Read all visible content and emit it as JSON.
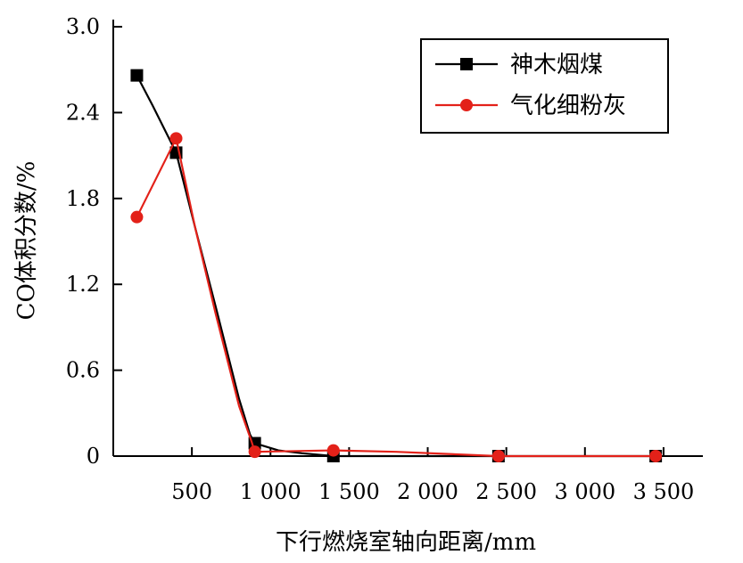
{
  "chart_data": {
    "type": "line",
    "title": "",
    "xlabel": "下行燃烧室轴向距离/mm",
    "ylabel": "CO体积分数/%",
    "xlim": [
      0,
      3750
    ],
    "ylim": [
      0,
      3.0
    ],
    "xticks": [
      500,
      1000,
      1500,
      2000,
      2500,
      3000,
      3500
    ],
    "xtick_labels": [
      "500",
      "1 000",
      "1 500",
      "2 000",
      "2 500",
      "3 000",
      "3 500"
    ],
    "yticks": [
      0,
      0.6,
      1.2,
      1.8,
      2.4,
      3.0
    ],
    "ytick_labels": [
      "0",
      "0.6",
      "1.2",
      "1.8",
      "2.4",
      "3.0"
    ],
    "grid": false,
    "legend_position": "top-right",
    "series": [
      {
        "name": "神木烟煤",
        "color": "#000000",
        "marker": "square",
        "x": [
          150,
          400,
          900,
          1400,
          2450,
          3450
        ],
        "y": [
          2.66,
          2.12,
          0.09,
          0.0,
          0.0,
          0.0
        ],
        "line_x": [
          150,
          250,
          400,
          520,
          650,
          800,
          870,
          900,
          1050,
          1200,
          1400,
          2000,
          2450,
          3450
        ],
        "line_y": [
          2.66,
          2.45,
          2.12,
          1.6,
          1.05,
          0.4,
          0.15,
          0.09,
          0.04,
          0.02,
          0.0,
          0.0,
          0.0,
          0.0
        ]
      },
      {
        "name": "气化细粉灰",
        "color": "#e32119",
        "marker": "circle",
        "x": [
          150,
          400,
          900,
          1400,
          2450,
          3450
        ],
        "y": [
          1.67,
          2.22,
          0.03,
          0.04,
          0.0,
          0.0
        ],
        "line_x": [
          150,
          400,
          520,
          650,
          800,
          880,
          900,
          1400,
          1800,
          2450,
          3450
        ],
        "line_y": [
          1.67,
          2.22,
          1.6,
          1.0,
          0.35,
          0.1,
          0.03,
          0.04,
          0.03,
          0.0,
          0.0
        ]
      }
    ]
  }
}
